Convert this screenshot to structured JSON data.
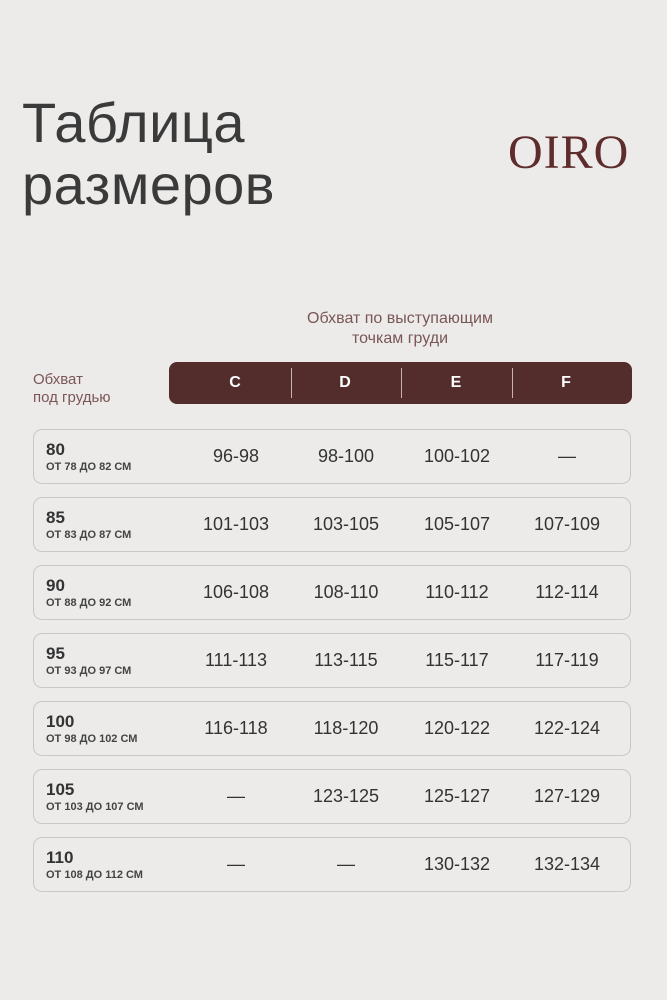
{
  "title": [
    "Таблица",
    "размеров"
  ],
  "logo": "OIRO",
  "header": {
    "bust_label": [
      "Обхват по выступающим",
      "точкам груди"
    ],
    "underbust_label": [
      "Обхват",
      "под грудью"
    ],
    "cups": [
      "C",
      "D",
      "E",
      "F"
    ]
  },
  "colors": {
    "accent": "#532d2b",
    "label": "#7a5656",
    "background": "#ecebea"
  },
  "rows": [
    {
      "size": "80",
      "range": "ОТ 78 ДО 82 СМ",
      "values": [
        "96-98",
        "98-100",
        "100-102",
        "—"
      ]
    },
    {
      "size": "85",
      "range": "ОТ 83 ДО 87 СМ",
      "values": [
        "101-103",
        "103-105",
        "105-107",
        "107-109"
      ]
    },
    {
      "size": "90",
      "range": "ОТ 88 ДО 92 СМ",
      "values": [
        "106-108",
        "108-110",
        "110-112",
        "112-114"
      ]
    },
    {
      "size": "95",
      "range": "ОТ 93 ДО 97 СМ",
      "values": [
        "111-113",
        "113-115",
        "115-117",
        "117-119"
      ]
    },
    {
      "size": "100",
      "range": "ОТ 98 ДО 102 СМ",
      "values": [
        "116-118",
        "118-120",
        "120-122",
        "122-124"
      ]
    },
    {
      "size": "105",
      "range": "ОТ 103 ДО 107 СМ",
      "values": [
        "—",
        "123-125",
        "125-127",
        "127-129"
      ]
    },
    {
      "size": "110",
      "range": "ОТ 108 ДО 112 СМ",
      "values": [
        "—",
        "—",
        "130-132",
        "132-134"
      ]
    }
  ]
}
